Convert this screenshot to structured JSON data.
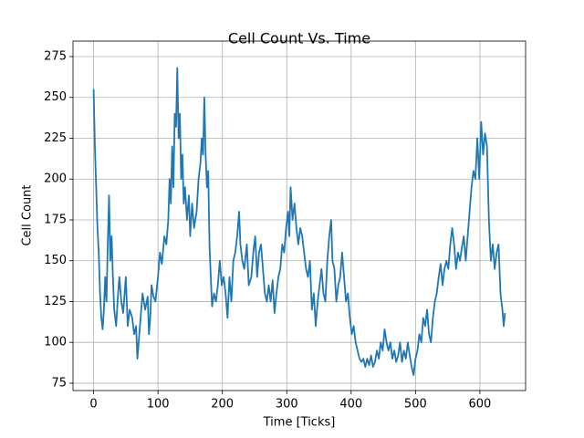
{
  "chart_data": {
    "type": "line",
    "title": "Cell Count Vs. Time",
    "xlabel": "Time [Ticks]",
    "ylabel": "Cell Count",
    "color": "#1f77b4",
    "grid": true,
    "xlim": [
      -32,
      671
    ],
    "ylim": [
      70.5,
      284.5
    ],
    "xticks": [
      0,
      100,
      200,
      300,
      400,
      500,
      600
    ],
    "yticks": [
      75,
      100,
      125,
      150,
      175,
      200,
      225,
      250,
      275
    ],
    "x": [
      0,
      2,
      4,
      6,
      8,
      10,
      12,
      14,
      16,
      18,
      20,
      22,
      24,
      26,
      28,
      30,
      32,
      35,
      38,
      40,
      43,
      46,
      50,
      53,
      56,
      60,
      63,
      66,
      68,
      70,
      73,
      76,
      80,
      84,
      86,
      88,
      90,
      93,
      96,
      100,
      103,
      106,
      110,
      113,
      116,
      118,
      120,
      122,
      124,
      126,
      128,
      130,
      132,
      134,
      136,
      138,
      140,
      142,
      145,
      148,
      150,
      153,
      156,
      160,
      163,
      166,
      168,
      170,
      172,
      174,
      176,
      178,
      180,
      182,
      184,
      187,
      190,
      193,
      196,
      199,
      202,
      205,
      208,
      211,
      214,
      217,
      220,
      223,
      226,
      228,
      231,
      234,
      238,
      241,
      245,
      248,
      251,
      254,
      257,
      260,
      263,
      266,
      269,
      272,
      275,
      278,
      281,
      284,
      287,
      290,
      293,
      296,
      299,
      302,
      304,
      306,
      309,
      312,
      315,
      318,
      321,
      324,
      327,
      330,
      333,
      336,
      339,
      342,
      345,
      348,
      351,
      354,
      357,
      360,
      363,
      366,
      369,
      371,
      374,
      377,
      380,
      383,
      386,
      389,
      392,
      395,
      398,
      401,
      404,
      407,
      410,
      413,
      416,
      419,
      422,
      425,
      428,
      431,
      434,
      437,
      440,
      443,
      446,
      449,
      452,
      455,
      458,
      461,
      464,
      467,
      470,
      473,
      476,
      479,
      482,
      485,
      488,
      491,
      494,
      497,
      500,
      503,
      506,
      509,
      512,
      515,
      518,
      521,
      524,
      527,
      530,
      533,
      536,
      539,
      542,
      545,
      548,
      551,
      554,
      557,
      560,
      563,
      566,
      569,
      572,
      575,
      578,
      581,
      584,
      587,
      590,
      593,
      596,
      599,
      602,
      605,
      608,
      611,
      614,
      617,
      620,
      623,
      626,
      629,
      632,
      635,
      637,
      639
    ],
    "values": [
      255,
      220,
      195,
      170,
      155,
      130,
      115,
      108,
      120,
      140,
      125,
      160,
      190,
      150,
      165,
      140,
      120,
      110,
      130,
      140,
      125,
      118,
      140,
      110,
      120,
      115,
      105,
      110,
      90,
      100,
      115,
      130,
      120,
      128,
      105,
      115,
      135,
      128,
      125,
      140,
      155,
      148,
      165,
      160,
      175,
      200,
      185,
      220,
      195,
      240,
      232,
      268,
      225,
      240,
      200,
      215,
      185,
      195,
      175,
      190,
      165,
      185,
      170,
      180,
      200,
      210,
      225,
      215,
      250,
      215,
      195,
      205,
      160,
      140,
      122,
      130,
      125,
      135,
      150,
      135,
      140,
      130,
      115,
      140,
      125,
      150,
      155,
      165,
      180,
      160,
      150,
      145,
      160,
      135,
      140,
      155,
      165,
      140,
      155,
      160,
      145,
      130,
      125,
      135,
      125,
      138,
      118,
      130,
      140,
      145,
      160,
      155,
      170,
      180,
      165,
      195,
      175,
      185,
      170,
      160,
      170,
      165,
      155,
      145,
      140,
      150,
      120,
      130,
      110,
      125,
      135,
      145,
      130,
      125,
      150,
      165,
      175,
      150,
      145,
      125,
      135,
      140,
      155,
      140,
      125,
      130,
      115,
      105,
      110,
      100,
      95,
      90,
      88,
      90,
      85,
      90,
      86,
      92,
      85,
      88,
      95,
      90,
      100,
      95,
      108,
      100,
      95,
      100,
      90,
      95,
      88,
      92,
      100,
      88,
      95,
      90,
      100,
      92,
      85,
      80,
      90,
      95,
      105,
      100,
      115,
      110,
      120,
      105,
      100,
      115,
      125,
      130,
      140,
      148,
      135,
      145,
      150,
      145,
      160,
      170,
      160,
      145,
      155,
      150,
      158,
      165,
      150,
      165,
      180,
      195,
      205,
      200,
      225,
      200,
      235,
      215,
      228,
      220,
      175,
      150,
      160,
      145,
      155,
      160,
      130,
      120,
      110,
      118
    ]
  }
}
